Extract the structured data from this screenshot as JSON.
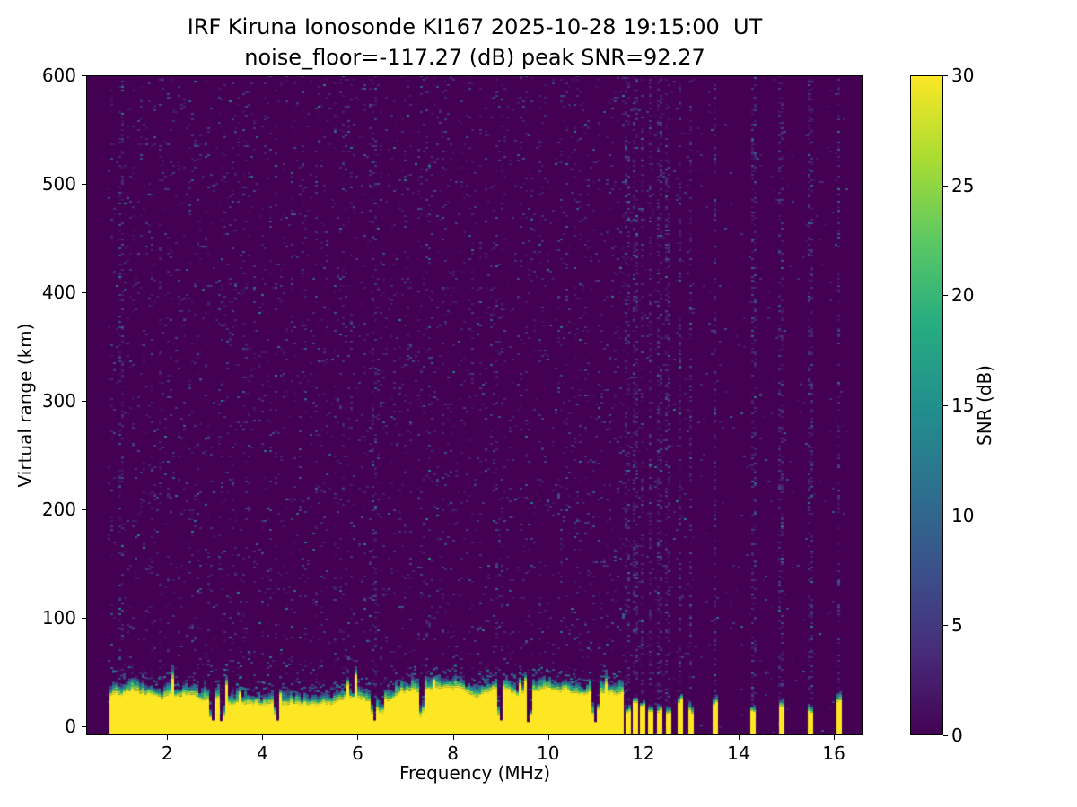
{
  "chart_data": {
    "type": "heatmap",
    "title": "IRF Kiruna Ionosonde KI167 2025-10-28 19:15:00  UT",
    "subtitle": "noise_floor=-117.27 (dB) peak SNR=92.27",
    "station": "IRF Kiruna Ionosonde KI167",
    "timestamp_ut": "2025-10-28 19:15:00",
    "noise_floor_db": -117.27,
    "peak_snr_db": 92.27,
    "xlabel": "Frequency (MHz)",
    "ylabel": "Virtual range (km)",
    "colorbar_label": "SNR (dB)",
    "colormap": "viridis",
    "xlim": [
      0.3,
      16.62
    ],
    "ylim": [
      -8,
      600
    ],
    "x_ticks": [
      2,
      4,
      6,
      8,
      10,
      12,
      14,
      16
    ],
    "y_ticks": [
      0,
      100,
      200,
      300,
      400,
      500,
      600
    ],
    "colorbar_ticks": [
      0,
      5,
      10,
      15,
      20,
      25,
      30
    ],
    "colorbar_range": [
      0,
      30
    ],
    "features": {
      "ground_echo": {
        "description": "Saturated echo band (SNR >= 30 dB, yellow) from the bottom of the plot up to about 22-36 km virtual range, continuous from about 0.8 to 11.55 MHz, topped by a ragged teal/green transition cap 4-12 km thick with occasional upward spikes to ~50 km",
        "freq_range_mhz": [
          0.8,
          11.55
        ],
        "top_range_km": [
          20,
          36
        ],
        "cap_thickness_km": [
          4,
          12
        ]
      },
      "stepped_soundings": {
        "description": "Above ~11.6 MHz the sounding is stepped: discrete narrow frequency columns show the same saturated low-range echo and faint full-height blue noise stripes",
        "stripe_freqs_mhz": [
          11.68,
          11.83,
          11.98,
          12.14,
          12.33,
          12.53,
          12.76,
          12.99,
          13.5,
          14.3,
          14.9,
          15.5,
          16.1
        ],
        "stripe_width_mhz": 0.1,
        "stripe_top_range_km": [
          13,
          24
        ]
      },
      "band_notches_mhz": [
        2.95,
        3.15,
        4.3,
        6.35,
        6.5,
        7.35,
        9.0,
        9.6,
        11.0
      ],
      "rfi_columns_mhz": [
        1.05,
        6.35
      ],
      "background_noise": {
        "description": "Sparse speckle noise of 1-12 dB over the whole 0.8-11.6 MHz range at all virtual ranges; much cleaner background above 11.6 MHz except at the stepped stripe frequencies",
        "speckle_db_range": [
          1,
          12
        ]
      }
    }
  },
  "colors": {
    "background": "#ffffff",
    "axes": "#000000",
    "viridis_min": "#440154",
    "viridis_max": "#fde725"
  }
}
